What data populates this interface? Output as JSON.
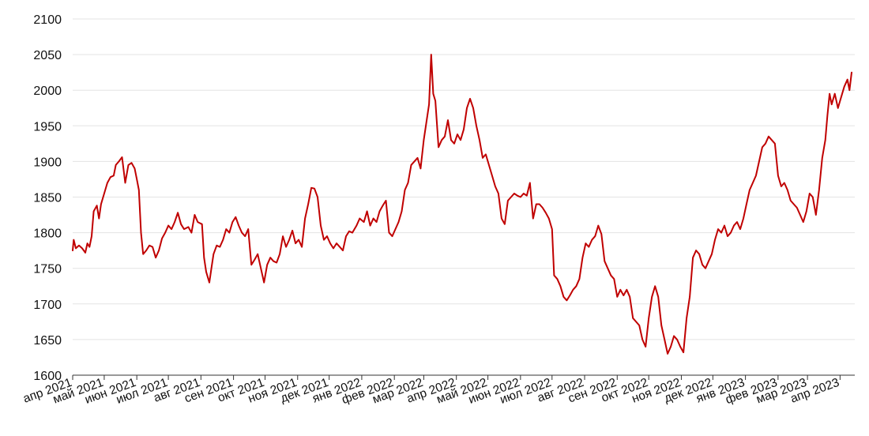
{
  "chart_data": {
    "type": "line",
    "title": "",
    "xlabel": "",
    "ylabel": "",
    "ylim": [
      1600,
      2100
    ],
    "xlim": [
      "2021-04-01",
      "2023-04-15"
    ],
    "grid": true,
    "legend": "none",
    "y_ticks": [
      1600,
      1650,
      1700,
      1750,
      1800,
      1850,
      1900,
      1950,
      2000,
      2050,
      2100
    ],
    "x_ticks": [
      {
        "date": "2021-04-01",
        "label": "апр 2021"
      },
      {
        "date": "2021-05-01",
        "label": "май 2021"
      },
      {
        "date": "2021-06-01",
        "label": "июн 2021"
      },
      {
        "date": "2021-07-01",
        "label": "июл 2021"
      },
      {
        "date": "2021-08-01",
        "label": "авг 2021"
      },
      {
        "date": "2021-09-01",
        "label": "сен 2021"
      },
      {
        "date": "2021-10-01",
        "label": "окт 2021"
      },
      {
        "date": "2021-11-01",
        "label": "ноя 2021"
      },
      {
        "date": "2021-12-01",
        "label": "дек 2021"
      },
      {
        "date": "2022-01-01",
        "label": "янв 2022"
      },
      {
        "date": "2022-02-01",
        "label": "фев 2022"
      },
      {
        "date": "2022-03-01",
        "label": "мар 2022"
      },
      {
        "date": "2022-04-01",
        "label": "апр 2022"
      },
      {
        "date": "2022-05-01",
        "label": "май 2022"
      },
      {
        "date": "2022-06-01",
        "label": "июн 2022"
      },
      {
        "date": "2022-07-01",
        "label": "июл 2022"
      },
      {
        "date": "2022-08-01",
        "label": "авг 2022"
      },
      {
        "date": "2022-09-01",
        "label": "сен 2022"
      },
      {
        "date": "2022-10-01",
        "label": "окт 2022"
      },
      {
        "date": "2022-11-01",
        "label": "ноя 2022"
      },
      {
        "date": "2022-12-01",
        "label": "дек 2022"
      },
      {
        "date": "2023-01-01",
        "label": "янв 2023"
      },
      {
        "date": "2023-02-01",
        "label": "фев 2023"
      },
      {
        "date": "2023-03-01",
        "label": "мар 2023"
      },
      {
        "date": "2023-04-01",
        "label": "апр 2023"
      }
    ],
    "colors": {
      "series": "#c00000",
      "grid": "#e3e3e3",
      "axis": "#333333",
      "text": "#111111"
    },
    "series": [
      {
        "color": "#c00000",
        "points": [
          [
            "2021-04-01",
            1775
          ],
          [
            "2021-04-02",
            1790
          ],
          [
            "2021-04-04",
            1778
          ],
          [
            "2021-04-07",
            1782
          ],
          [
            "2021-04-10",
            1778
          ],
          [
            "2021-04-13",
            1772
          ],
          [
            "2021-04-15",
            1785
          ],
          [
            "2021-04-17",
            1780
          ],
          [
            "2021-04-19",
            1795
          ],
          [
            "2021-04-21",
            1830
          ],
          [
            "2021-04-24",
            1838
          ],
          [
            "2021-04-26",
            1820
          ],
          [
            "2021-04-28",
            1840
          ],
          [
            "2021-05-01",
            1855
          ],
          [
            "2021-05-04",
            1870
          ],
          [
            "2021-05-07",
            1878
          ],
          [
            "2021-05-10",
            1880
          ],
          [
            "2021-05-12",
            1895
          ],
          [
            "2021-05-15",
            1900
          ],
          [
            "2021-05-18",
            1906
          ],
          [
            "2021-05-21",
            1870
          ],
          [
            "2021-05-24",
            1895
          ],
          [
            "2021-05-27",
            1898
          ],
          [
            "2021-05-30",
            1890
          ],
          [
            "2021-06-01",
            1875
          ],
          [
            "2021-06-03",
            1860
          ],
          [
            "2021-06-05",
            1800
          ],
          [
            "2021-06-07",
            1770
          ],
          [
            "2021-06-10",
            1775
          ],
          [
            "2021-06-13",
            1782
          ],
          [
            "2021-06-16",
            1780
          ],
          [
            "2021-06-19",
            1765
          ],
          [
            "2021-06-22",
            1775
          ],
          [
            "2021-06-25",
            1792
          ],
          [
            "2021-06-28",
            1800
          ],
          [
            "2021-07-01",
            1810
          ],
          [
            "2021-07-04",
            1805
          ],
          [
            "2021-07-07",
            1815
          ],
          [
            "2021-07-10",
            1828
          ],
          [
            "2021-07-13",
            1812
          ],
          [
            "2021-07-16",
            1805
          ],
          [
            "2021-07-20",
            1808
          ],
          [
            "2021-07-23",
            1800
          ],
          [
            "2021-07-26",
            1825
          ],
          [
            "2021-07-29",
            1815
          ],
          [
            "2021-08-02",
            1812
          ],
          [
            "2021-08-04",
            1765
          ],
          [
            "2021-08-06",
            1745
          ],
          [
            "2021-08-09",
            1730
          ],
          [
            "2021-08-11",
            1750
          ],
          [
            "2021-08-13",
            1770
          ],
          [
            "2021-08-16",
            1782
          ],
          [
            "2021-08-19",
            1780
          ],
          [
            "2021-08-22",
            1790
          ],
          [
            "2021-08-25",
            1805
          ],
          [
            "2021-08-28",
            1800
          ],
          [
            "2021-08-31",
            1815
          ],
          [
            "2021-09-03",
            1822
          ],
          [
            "2021-09-06",
            1810
          ],
          [
            "2021-09-09",
            1800
          ],
          [
            "2021-09-12",
            1795
          ],
          [
            "2021-09-15",
            1805
          ],
          [
            "2021-09-18",
            1755
          ],
          [
            "2021-09-21",
            1762
          ],
          [
            "2021-09-24",
            1770
          ],
          [
            "2021-09-27",
            1750
          ],
          [
            "2021-09-30",
            1730
          ],
          [
            "2021-10-03",
            1755
          ],
          [
            "2021-10-06",
            1765
          ],
          [
            "2021-10-09",
            1760
          ],
          [
            "2021-10-12",
            1758
          ],
          [
            "2021-10-15",
            1770
          ],
          [
            "2021-10-18",
            1795
          ],
          [
            "2021-10-21",
            1780
          ],
          [
            "2021-10-24",
            1790
          ],
          [
            "2021-10-27",
            1803
          ],
          [
            "2021-10-30",
            1785
          ],
          [
            "2021-11-02",
            1790
          ],
          [
            "2021-11-05",
            1780
          ],
          [
            "2021-11-08",
            1820
          ],
          [
            "2021-11-11",
            1840
          ],
          [
            "2021-11-14",
            1863
          ],
          [
            "2021-11-17",
            1862
          ],
          [
            "2021-11-20",
            1850
          ],
          [
            "2021-11-23",
            1810
          ],
          [
            "2021-11-26",
            1790
          ],
          [
            "2021-11-29",
            1795
          ],
          [
            "2021-12-02",
            1785
          ],
          [
            "2021-12-05",
            1778
          ],
          [
            "2021-12-08",
            1785
          ],
          [
            "2021-12-11",
            1780
          ],
          [
            "2021-12-14",
            1775
          ],
          [
            "2021-12-17",
            1795
          ],
          [
            "2021-12-20",
            1802
          ],
          [
            "2021-12-23",
            1800
          ],
          [
            "2021-12-27",
            1810
          ],
          [
            "2021-12-30",
            1820
          ],
          [
            "2022-01-03",
            1815
          ],
          [
            "2022-01-06",
            1830
          ],
          [
            "2022-01-09",
            1810
          ],
          [
            "2022-01-12",
            1820
          ],
          [
            "2022-01-15",
            1815
          ],
          [
            "2022-01-18",
            1830
          ],
          [
            "2022-01-21",
            1838
          ],
          [
            "2022-01-24",
            1845
          ],
          [
            "2022-01-27",
            1800
          ],
          [
            "2022-01-30",
            1795
          ],
          [
            "2022-02-02",
            1805
          ],
          [
            "2022-02-05",
            1815
          ],
          [
            "2022-02-08",
            1830
          ],
          [
            "2022-02-11",
            1860
          ],
          [
            "2022-02-14",
            1870
          ],
          [
            "2022-02-17",
            1895
          ],
          [
            "2022-02-20",
            1900
          ],
          [
            "2022-02-23",
            1905
          ],
          [
            "2022-02-26",
            1890
          ],
          [
            "2022-03-01",
            1930
          ],
          [
            "2022-03-04",
            1960
          ],
          [
            "2022-03-06",
            1980
          ],
          [
            "2022-03-08",
            2050
          ],
          [
            "2022-03-10",
            1995
          ],
          [
            "2022-03-12",
            1985
          ],
          [
            "2022-03-15",
            1920
          ],
          [
            "2022-03-18",
            1930
          ],
          [
            "2022-03-21",
            1935
          ],
          [
            "2022-03-24",
            1958
          ],
          [
            "2022-03-27",
            1930
          ],
          [
            "2022-03-30",
            1925
          ],
          [
            "2022-04-02",
            1938
          ],
          [
            "2022-04-05",
            1930
          ],
          [
            "2022-04-08",
            1945
          ],
          [
            "2022-04-11",
            1975
          ],
          [
            "2022-04-14",
            1988
          ],
          [
            "2022-04-17",
            1975
          ],
          [
            "2022-04-20",
            1950
          ],
          [
            "2022-04-23",
            1930
          ],
          [
            "2022-04-26",
            1905
          ],
          [
            "2022-04-29",
            1910
          ],
          [
            "2022-05-02",
            1895
          ],
          [
            "2022-05-05",
            1880
          ],
          [
            "2022-05-08",
            1865
          ],
          [
            "2022-05-11",
            1855
          ],
          [
            "2022-05-14",
            1820
          ],
          [
            "2022-05-17",
            1812
          ],
          [
            "2022-05-20",
            1845
          ],
          [
            "2022-05-23",
            1850
          ],
          [
            "2022-05-26",
            1855
          ],
          [
            "2022-05-29",
            1852
          ],
          [
            "2022-06-01",
            1850
          ],
          [
            "2022-06-04",
            1855
          ],
          [
            "2022-06-07",
            1852
          ],
          [
            "2022-06-10",
            1870
          ],
          [
            "2022-06-13",
            1820
          ],
          [
            "2022-06-16",
            1840
          ],
          [
            "2022-06-19",
            1840
          ],
          [
            "2022-06-22",
            1835
          ],
          [
            "2022-06-25",
            1828
          ],
          [
            "2022-06-28",
            1820
          ],
          [
            "2022-07-01",
            1805
          ],
          [
            "2022-07-03",
            1740
          ],
          [
            "2022-07-06",
            1735
          ],
          [
            "2022-07-09",
            1725
          ],
          [
            "2022-07-12",
            1710
          ],
          [
            "2022-07-15",
            1705
          ],
          [
            "2022-07-18",
            1712
          ],
          [
            "2022-07-21",
            1720
          ],
          [
            "2022-07-24",
            1725
          ],
          [
            "2022-07-27",
            1735
          ],
          [
            "2022-07-30",
            1765
          ],
          [
            "2022-08-02",
            1785
          ],
          [
            "2022-08-05",
            1780
          ],
          [
            "2022-08-08",
            1790
          ],
          [
            "2022-08-11",
            1795
          ],
          [
            "2022-08-14",
            1810
          ],
          [
            "2022-08-17",
            1798
          ],
          [
            "2022-08-20",
            1760
          ],
          [
            "2022-08-23",
            1750
          ],
          [
            "2022-08-26",
            1740
          ],
          [
            "2022-08-29",
            1735
          ],
          [
            "2022-09-01",
            1710
          ],
          [
            "2022-09-04",
            1720
          ],
          [
            "2022-09-07",
            1712
          ],
          [
            "2022-09-10",
            1720
          ],
          [
            "2022-09-13",
            1710
          ],
          [
            "2022-09-16",
            1680
          ],
          [
            "2022-09-19",
            1675
          ],
          [
            "2022-09-22",
            1670
          ],
          [
            "2022-09-25",
            1650
          ],
          [
            "2022-09-28",
            1640
          ],
          [
            "2022-10-01",
            1680
          ],
          [
            "2022-10-04",
            1710
          ],
          [
            "2022-10-07",
            1725
          ],
          [
            "2022-10-10",
            1710
          ],
          [
            "2022-10-13",
            1670
          ],
          [
            "2022-10-16",
            1650
          ],
          [
            "2022-10-19",
            1630
          ],
          [
            "2022-10-22",
            1640
          ],
          [
            "2022-10-25",
            1655
          ],
          [
            "2022-10-28",
            1650
          ],
          [
            "2022-10-31",
            1640
          ],
          [
            "2022-11-03",
            1632
          ],
          [
            "2022-11-06",
            1680
          ],
          [
            "2022-11-09",
            1710
          ],
          [
            "2022-11-12",
            1765
          ],
          [
            "2022-11-15",
            1775
          ],
          [
            "2022-11-18",
            1770
          ],
          [
            "2022-11-21",
            1755
          ],
          [
            "2022-11-24",
            1750
          ],
          [
            "2022-11-27",
            1760
          ],
          [
            "2022-11-30",
            1770
          ],
          [
            "2022-12-03",
            1790
          ],
          [
            "2022-12-06",
            1805
          ],
          [
            "2022-12-09",
            1800
          ],
          [
            "2022-12-12",
            1810
          ],
          [
            "2022-12-15",
            1795
          ],
          [
            "2022-12-18",
            1800
          ],
          [
            "2022-12-21",
            1810
          ],
          [
            "2022-12-24",
            1815
          ],
          [
            "2022-12-27",
            1805
          ],
          [
            "2022-12-30",
            1820
          ],
          [
            "2023-01-02",
            1840
          ],
          [
            "2023-01-05",
            1860
          ],
          [
            "2023-01-08",
            1870
          ],
          [
            "2023-01-11",
            1880
          ],
          [
            "2023-01-14",
            1900
          ],
          [
            "2023-01-17",
            1920
          ],
          [
            "2023-01-20",
            1925
          ],
          [
            "2023-01-23",
            1935
          ],
          [
            "2023-01-26",
            1930
          ],
          [
            "2023-01-29",
            1925
          ],
          [
            "2023-02-01",
            1880
          ],
          [
            "2023-02-04",
            1865
          ],
          [
            "2023-02-07",
            1870
          ],
          [
            "2023-02-10",
            1860
          ],
          [
            "2023-02-13",
            1845
          ],
          [
            "2023-02-16",
            1840
          ],
          [
            "2023-02-19",
            1835
          ],
          [
            "2023-02-22",
            1825
          ],
          [
            "2023-02-25",
            1815
          ],
          [
            "2023-02-28",
            1830
          ],
          [
            "2023-03-03",
            1855
          ],
          [
            "2023-03-06",
            1850
          ],
          [
            "2023-03-09",
            1825
          ],
          [
            "2023-03-12",
            1860
          ],
          [
            "2023-03-15",
            1905
          ],
          [
            "2023-03-18",
            1930
          ],
          [
            "2023-03-20",
            1965
          ],
          [
            "2023-03-22",
            1995
          ],
          [
            "2023-03-24",
            1980
          ],
          [
            "2023-03-27",
            1995
          ],
          [
            "2023-03-30",
            1975
          ],
          [
            "2023-04-02",
            1990
          ],
          [
            "2023-04-05",
            2005
          ],
          [
            "2023-04-08",
            2015
          ],
          [
            "2023-04-10",
            2000
          ],
          [
            "2023-04-12",
            2025
          ]
        ]
      }
    ]
  }
}
